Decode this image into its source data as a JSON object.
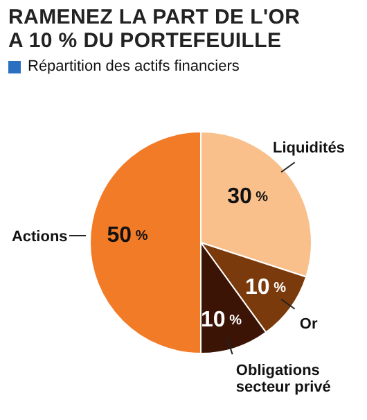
{
  "chart_data": {
    "type": "pie",
    "title": "RAMENEZ LA PART DE L'OR A 10 % DU PORTEFEUILLE",
    "subtitle": "Répartition des actifs financiers",
    "categories": [
      "Liquidités",
      "Or",
      "Obligations secteur privé",
      "Actions"
    ],
    "values": [
      30,
      10,
      10,
      50
    ],
    "colors": [
      "#f9c08c",
      "#7b3a0c",
      "#3b1406",
      "#f27b28"
    ],
    "value_labels": [
      "30 %",
      "10 %",
      "10 %",
      "50 %"
    ]
  }
}
